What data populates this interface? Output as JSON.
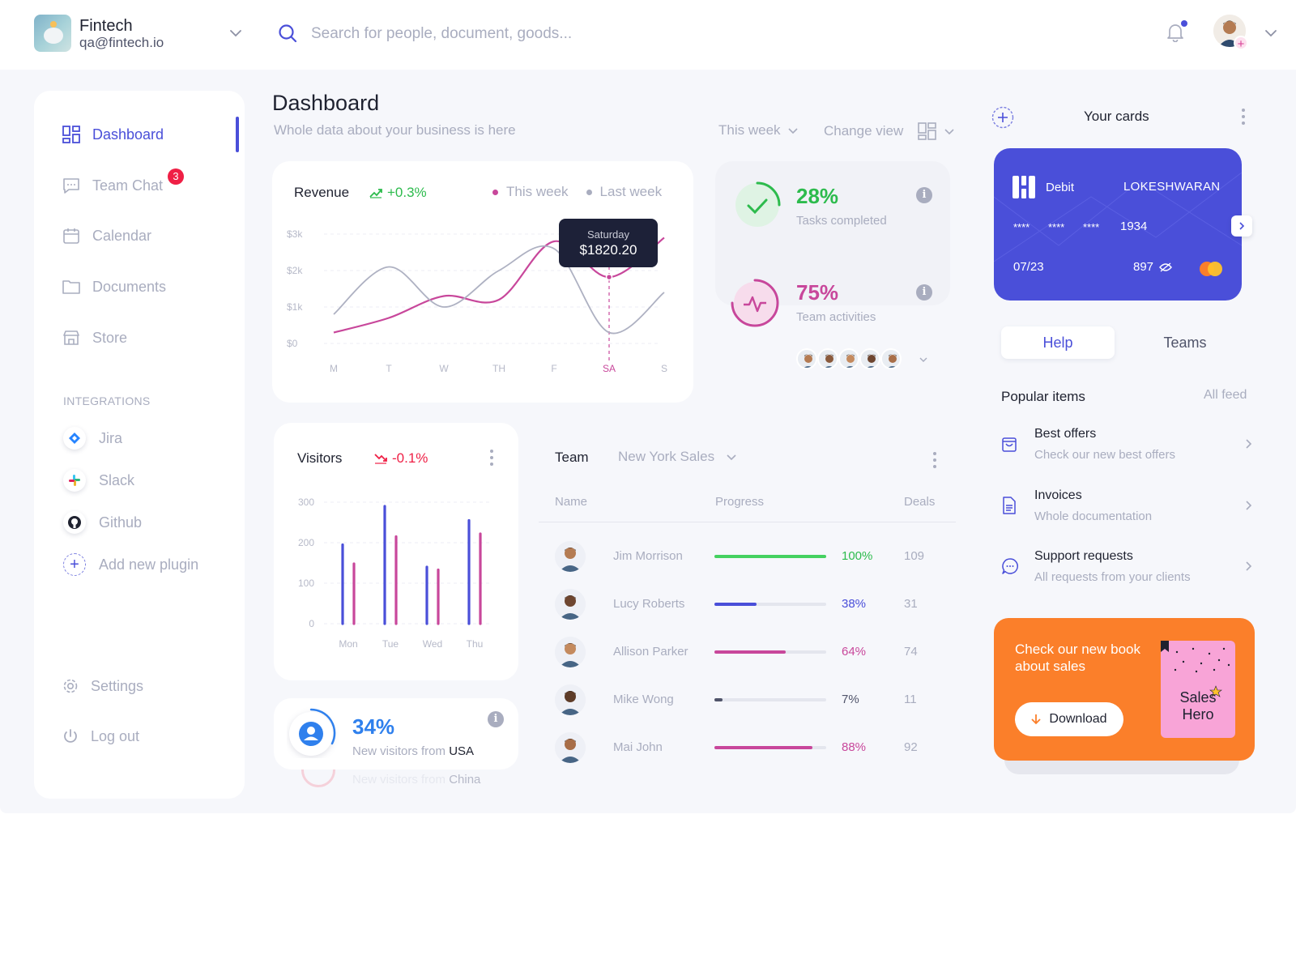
{
  "brand": {
    "name": "Fintech",
    "email": "qa@fintech.io"
  },
  "search": {
    "placeholder": "Search for people, document, goods..."
  },
  "sidebar": {
    "items": [
      {
        "label": "Dashboard",
        "icon": "grid-icon",
        "active": true
      },
      {
        "label": "Team Chat",
        "icon": "chat-icon",
        "badge": "3"
      },
      {
        "label": "Calendar",
        "icon": "calendar-icon"
      },
      {
        "label": "Documents",
        "icon": "folder-icon"
      },
      {
        "label": "Store",
        "icon": "store-icon"
      }
    ],
    "integrations_title": "INTEGRATIONS",
    "integrations": [
      {
        "label": "Jira",
        "icon": "jira-icon"
      },
      {
        "label": "Slack",
        "icon": "slack-icon"
      },
      {
        "label": "Github",
        "icon": "github-icon"
      },
      {
        "label": "Add new plugin",
        "icon": "plus-icon"
      }
    ],
    "settings_label": "Settings",
    "logout_label": "Log out"
  },
  "header": {
    "title": "Dashboard",
    "subtitle": "Whole data about your business is here",
    "period": "This week",
    "change_view": "Change view"
  },
  "revenue": {
    "title": "Revenue",
    "trend": "+0.3%",
    "legend_this": "This week",
    "legend_last": "Last week",
    "tooltip_day": "Saturday",
    "tooltip_value": "$1820.20"
  },
  "stats": {
    "tasks_pct": "28%",
    "tasks_label": "Tasks completed",
    "team_pct": "75%",
    "team_label": "Team activities"
  },
  "visitors": {
    "title": "Visitors",
    "trend": "-0.1%",
    "usa_pct": "34%",
    "usa_label": "New visitors from ",
    "usa_country": "USA",
    "china_label": "New visitors from ",
    "china_country": "China"
  },
  "team": {
    "title": "Team",
    "filter": "New York Sales",
    "columns": {
      "name": "Name",
      "progress": "Progress",
      "deals": "Deals"
    },
    "rows": [
      {
        "name": "Jim Morrison",
        "progress": "100%",
        "value": 1.0,
        "deals": "109",
        "color": "#45d160",
        "pct_color": "#2dbb4d"
      },
      {
        "name": "Lucy Roberts",
        "progress": "38%",
        "value": 0.38,
        "deals": "31",
        "color": "#4a4fd9",
        "pct_color": "#4a4fd9"
      },
      {
        "name": "Allison Parker",
        "progress": "64%",
        "value": 0.64,
        "deals": "74",
        "color": "#c8479b",
        "pct_color": "#c8479b"
      },
      {
        "name": "Mike Wong",
        "progress": "7%",
        "value": 0.07,
        "deals": "11",
        "color": "#50546a",
        "pct_color": "#50546a"
      },
      {
        "name": "Mai John",
        "progress": "88%",
        "value": 0.88,
        "deals": "92",
        "color": "#c8479b",
        "pct_color": "#c8479b"
      }
    ]
  },
  "cards": {
    "title": "Your cards",
    "type": "Debit",
    "holder": "LOKESHWARAN",
    "masked": [
      "****",
      "****",
      "****"
    ],
    "last4": "1934",
    "expiry": "07/23",
    "cvv": "897"
  },
  "help": {
    "tabs": [
      "Help",
      "Teams"
    ],
    "popular_title": "Popular items",
    "all_feed": "All feed",
    "items": [
      {
        "title": "Best offers",
        "subtitle": "Check our new best offers",
        "icon": "shopping-bag-icon"
      },
      {
        "title": "Invoices",
        "subtitle": "Whole documentation",
        "icon": "document-icon"
      },
      {
        "title": "Support requests",
        "subtitle": "All requests from your clients",
        "icon": "chat-bubble-icon"
      }
    ]
  },
  "promo": {
    "text": "Check our new book about sales",
    "button": "Download",
    "book_title_1": "Sales",
    "book_title_2": "Hero"
  },
  "colors": {
    "accent": "#4a4fd9",
    "pink": "#c8479b",
    "green": "#2dbb4d",
    "red": "#ef1f45",
    "orange": "#fb7f2a"
  },
  "chart_data": [
    {
      "type": "line",
      "title": "Revenue",
      "categories": [
        "M",
        "T",
        "W",
        "TH",
        "F",
        "SA",
        "S"
      ],
      "y_ticks": [
        "$0",
        "$1k",
        "$2k",
        "$3k"
      ],
      "ylim": [
        0,
        3000
      ],
      "series": [
        {
          "name": "This week",
          "values": [
            300,
            700,
            1300,
            1200,
            2800,
            1820,
            2900
          ]
        },
        {
          "name": "Last week",
          "values": [
            800,
            2100,
            1000,
            2000,
            2600,
            300,
            1400
          ]
        }
      ],
      "grid": true,
      "legend": "top-right"
    },
    {
      "type": "bar",
      "title": "Visitors",
      "categories": [
        "Mon",
        "Tue",
        "Wed",
        "Thu"
      ],
      "y_ticks": [
        "0",
        "100",
        "200",
        "300"
      ],
      "ylim": [
        0,
        300
      ],
      "series": [
        {
          "values": [
            195,
            290,
            140,
            255
          ]
        },
        {
          "values": [
            148,
            215,
            133,
            222
          ]
        }
      ],
      "grid": true
    }
  ]
}
